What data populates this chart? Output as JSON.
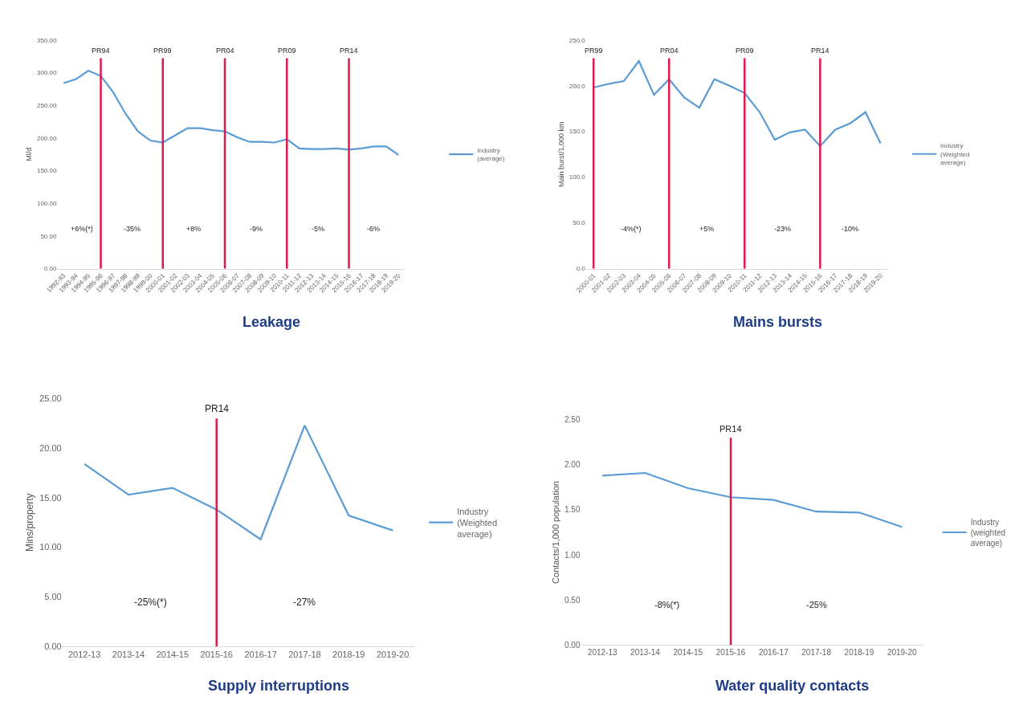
{
  "chart_data": [
    {
      "type": "line",
      "title": "Leakage",
      "ylabel": "Ml/d",
      "categories": [
        "1992-93",
        "1993-94",
        "1994-95",
        "1995-96",
        "1996-97",
        "1997-98",
        "1998-99",
        "1999-00",
        "2000-01",
        "2001-02",
        "2002-03",
        "2003-04",
        "2004-05",
        "2005-06",
        "2006-07",
        "2007-08",
        "2008-09",
        "2009-10",
        "2010-11",
        "2011-12",
        "2012-13",
        "2013-14",
        "2014-15",
        "2015-16",
        "2016-17",
        "2017-18",
        "2018-19",
        "2019-20"
      ],
      "series": [
        {
          "name": "Industry (average)",
          "color": "#5b9bd5",
          "values": [
            284,
            290,
            303,
            295,
            270,
            237,
            210,
            196,
            193,
            204,
            215,
            215,
            212,
            210,
            201,
            194,
            194,
            193,
            198,
            184,
            183,
            183,
            184,
            182,
            184,
            187,
            187,
            174
          ]
        }
      ],
      "ylim": [
        0,
        350
      ],
      "yticks": [
        {
          "value": 0,
          "label": "0.00"
        },
        {
          "value": 50,
          "label": "50.00"
        },
        {
          "value": 100,
          "label": "100.00"
        },
        {
          "value": 150,
          "label": "150.00"
        },
        {
          "value": 200,
          "label": "200.00"
        },
        {
          "value": 250,
          "label": "250.00"
        },
        {
          "value": 300,
          "label": "300.00"
        },
        {
          "value": 350,
          "label": "350.00"
        }
      ],
      "ref_lines": [
        {
          "axis": "x",
          "value": "1995-96",
          "label": "PR94",
          "color": "#e0184d"
        },
        {
          "axis": "x",
          "value": "2000-01",
          "label": "PR99",
          "color": "#e0184d"
        },
        {
          "axis": "x",
          "value": "2005-06",
          "label": "PR04",
          "color": "#e0184d"
        },
        {
          "axis": "x",
          "value": "2010-11",
          "label": "PR09",
          "color": "#e0184d"
        },
        {
          "axis": "x",
          "value": "2015-16",
          "label": "PR14",
          "color": "#e0184d"
        }
      ],
      "annotations": [
        "+6%(*)",
        "-35%",
        "+8%",
        "-9%",
        "-5%",
        "-6%"
      ],
      "grid": false,
      "legend": "right",
      "marker": "none",
      "line_style": "solid"
    },
    {
      "type": "line",
      "title": "Mains bursts",
      "ylabel": "Main burst/1,000 km",
      "categories": [
        "2000-01",
        "2001-02",
        "2002-03",
        "2003-04",
        "2004-05",
        "2005-06",
        "2006-07",
        "2007-08",
        "2008-09",
        "2009-10",
        "2010-11",
        "2011-12",
        "2012-13",
        "2013-14",
        "2014-15",
        "2015-16",
        "2016-17",
        "2017-18",
        "2018-19",
        "2019-20"
      ],
      "series": [
        {
          "name": "Industry (Weighted average)",
          "color": "#5b9bd5",
          "values": [
            198,
            202,
            205,
            227,
            190,
            207,
            187,
            176,
            207,
            200,
            192,
            171,
            141,
            149,
            152,
            134,
            152,
            159,
            171,
            137
          ]
        }
      ],
      "ylim": [
        0,
        250
      ],
      "yticks": [
        {
          "value": 0,
          "label": "0.0"
        },
        {
          "value": 50,
          "label": "50.0"
        },
        {
          "value": 100,
          "label": "100.0"
        },
        {
          "value": 150,
          "label": "150.0"
        },
        {
          "value": 200,
          "label": "200.0"
        },
        {
          "value": 250,
          "label": "250.0"
        }
      ],
      "ref_lines": [
        {
          "axis": "x",
          "value": "2000-01",
          "label": "PR99",
          "color": "#e0184d"
        },
        {
          "axis": "x",
          "value": "2005-06",
          "label": "PR04",
          "color": "#e0184d"
        },
        {
          "axis": "x",
          "value": "2010-11",
          "label": "PR09",
          "color": "#e0184d"
        },
        {
          "axis": "x",
          "value": "2015-16",
          "label": "PR14",
          "color": "#e0184d"
        }
      ],
      "annotations": [
        "-4%(*)",
        "+5%",
        "-23%",
        "-10%"
      ],
      "grid": false,
      "legend": "right",
      "marker": "none",
      "line_style": "solid"
    },
    {
      "type": "line",
      "title": "Supply interruptions",
      "ylabel": "Mins/property",
      "categories": [
        "2012-13",
        "2013-14",
        "2014-15",
        "2015-16",
        "2016-17",
        "2017-18",
        "2018-19",
        "2019-20"
      ],
      "series": [
        {
          "name": "Industry (Weighted average)",
          "color": "#5b9bd5",
          "values": [
            18.4,
            15.3,
            16.0,
            13.8,
            10.8,
            22.3,
            13.2,
            11.7
          ]
        }
      ],
      "ylim": [
        0,
        25
      ],
      "yticks": [
        {
          "value": 0,
          "label": "0.00"
        },
        {
          "value": 5,
          "label": "5.00"
        },
        {
          "value": 10,
          "label": "10.00"
        },
        {
          "value": 15,
          "label": "15.00"
        },
        {
          "value": 20,
          "label": "20.00"
        },
        {
          "value": 25,
          "label": "25.00"
        }
      ],
      "ref_lines": [
        {
          "axis": "x",
          "value": "2015-16",
          "label": "PR14",
          "color": "#e0184d"
        }
      ],
      "annotations": [
        "-25%(*)",
        "-27%"
      ],
      "grid": false,
      "legend": "right",
      "marker": "none",
      "line_style": "solid"
    },
    {
      "type": "line",
      "title": "Water quality contacts",
      "ylabel": "Contacts/1,000 population",
      "categories": [
        "2012-13",
        "2013-14",
        "2014-15",
        "2015-16",
        "2016-17",
        "2017-18",
        "2018-19",
        "2019-20"
      ],
      "series": [
        {
          "name": "Industry (weighted average)",
          "color": "#5b9bd5",
          "values": [
            1.88,
            1.91,
            1.74,
            1.64,
            1.61,
            1.48,
            1.47,
            1.31
          ]
        }
      ],
      "ylim": [
        0,
        2.5
      ],
      "yticks": [
        {
          "value": 0,
          "label": "0.00"
        },
        {
          "value": 0.5,
          "label": "0.50"
        },
        {
          "value": 1,
          "label": "1.00"
        },
        {
          "value": 1.5,
          "label": "1.50"
        },
        {
          "value": 2,
          "label": "2.00"
        },
        {
          "value": 2.5,
          "label": "2.50"
        }
      ],
      "ref_lines": [
        {
          "axis": "x",
          "value": "2015-16",
          "label": "PR14",
          "color": "#e0184d"
        }
      ],
      "annotations": [
        "-8%(*)",
        "-25%"
      ],
      "grid": false,
      "legend": "right",
      "marker": "none",
      "line_style": "solid"
    }
  ]
}
